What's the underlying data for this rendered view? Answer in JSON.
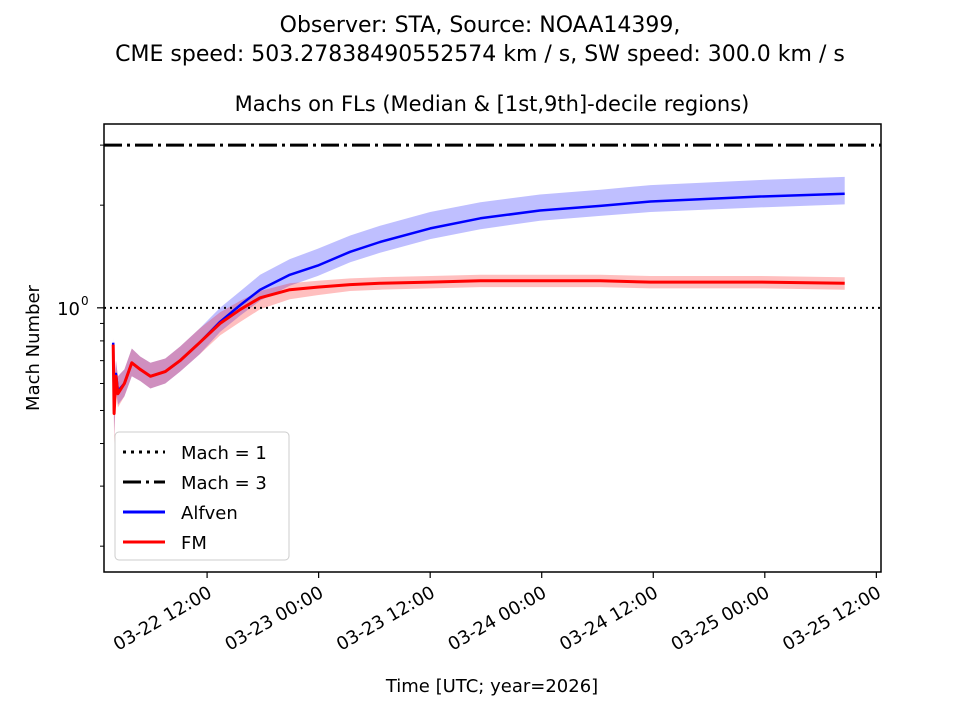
{
  "chart_data": {
    "type": "line",
    "suptitle_line1": "Observer: STA, Source: NOAA14399,",
    "suptitle_line2": "CME speed: 503.27838490552574 km / s, SW speed: 300.0 km / s",
    "title": "Machs on FLs (Median & [1st,9th]-decile regions)",
    "xlabel": "Time [UTC; year=2026]",
    "ylabel": "Mach Number",
    "yscale": "log",
    "ylim": [
      0.168,
      3.46
    ],
    "xlim_hours_since_03-22_00:00": [
      0.91,
      84.5
    ],
    "x_unit": "hours since 2026-03-22 00:00 UTC",
    "xticks": [
      {
        "hours": 12,
        "label": "03-22 12:00"
      },
      {
        "hours": 24,
        "label": "03-23 00:00"
      },
      {
        "hours": 36,
        "label": "03-23 12:00"
      },
      {
        "hours": 48,
        "label": "03-24 00:00"
      },
      {
        "hours": 60,
        "label": "03-24 12:00"
      },
      {
        "hours": 72,
        "label": "03-25 00:00"
      },
      {
        "hours": 84,
        "label": "03-25 12:00"
      }
    ],
    "yticks": [
      {
        "value": 1,
        "label": "10",
        "exp": "0"
      }
    ],
    "yminor": [
      0.2,
      0.3,
      0.4,
      0.5,
      0.6,
      0.7,
      0.8,
      0.9,
      2,
      3
    ],
    "hlines": [
      {
        "name": "Mach = 1",
        "value": 1,
        "style": "dotted"
      },
      {
        "name": "Mach = 3",
        "value": 3,
        "style": "dashdot"
      }
    ],
    "x": [
      1.9,
      2.0,
      2.2,
      2.4,
      3.1,
      3.9,
      4.8,
      5.9,
      7.5,
      9.1,
      11.2,
      13.4,
      15.6,
      17.7,
      20.9,
      23.9,
      27.4,
      30.6,
      36,
      41.4,
      47.8,
      54.3,
      59.7,
      71.5,
      80.6
    ],
    "series": [
      {
        "name": "Alfven",
        "color": "#0000ff",
        "band_color": "rgba(0,0,255,0.25)",
        "median": [
          0.79,
          0.5,
          0.64,
          0.57,
          0.6,
          0.69,
          0.66,
          0.63,
          0.65,
          0.7,
          0.79,
          0.91,
          1.02,
          1.13,
          1.25,
          1.33,
          1.46,
          1.56,
          1.71,
          1.83,
          1.93,
          1.99,
          2.05,
          2.12,
          2.16
        ],
        "decile1": [
          0.79,
          0.42,
          0.58,
          0.52,
          0.55,
          0.63,
          0.61,
          0.58,
          0.6,
          0.65,
          0.73,
          0.85,
          0.95,
          1.05,
          1.16,
          1.24,
          1.36,
          1.45,
          1.59,
          1.7,
          1.8,
          1.86,
          1.91,
          1.97,
          2.01
        ],
        "decile9": [
          0.82,
          0.6,
          0.7,
          0.63,
          0.66,
          0.76,
          0.72,
          0.69,
          0.71,
          0.77,
          0.87,
          1.0,
          1.12,
          1.25,
          1.39,
          1.49,
          1.63,
          1.74,
          1.91,
          2.04,
          2.15,
          2.22,
          2.29,
          2.37,
          2.42
        ]
      },
      {
        "name": "FM",
        "color": "#ff0000",
        "band_color": "rgba(255,0,0,0.25)",
        "median": [
          0.78,
          0.49,
          0.63,
          0.56,
          0.6,
          0.69,
          0.66,
          0.63,
          0.65,
          0.7,
          0.79,
          0.9,
          0.99,
          1.07,
          1.13,
          1.15,
          1.17,
          1.18,
          1.19,
          1.2,
          1.2,
          1.2,
          1.19,
          1.19,
          1.18
        ],
        "decile1": [
          0.76,
          0.4,
          0.57,
          0.51,
          0.55,
          0.63,
          0.61,
          0.58,
          0.6,
          0.65,
          0.73,
          0.83,
          0.91,
          0.99,
          1.06,
          1.09,
          1.12,
          1.13,
          1.14,
          1.15,
          1.15,
          1.15,
          1.14,
          1.14,
          1.13
        ],
        "decile9": [
          0.8,
          0.6,
          0.7,
          0.63,
          0.66,
          0.76,
          0.72,
          0.69,
          0.71,
          0.77,
          0.87,
          0.97,
          1.05,
          1.12,
          1.18,
          1.2,
          1.22,
          1.23,
          1.24,
          1.25,
          1.25,
          1.25,
          1.24,
          1.24,
          1.23
        ]
      }
    ],
    "legend": {
      "placement": "lower-left",
      "entries": [
        "Mach = 1",
        "Mach = 3",
        "Alfven",
        "FM"
      ]
    },
    "grid": false
  }
}
